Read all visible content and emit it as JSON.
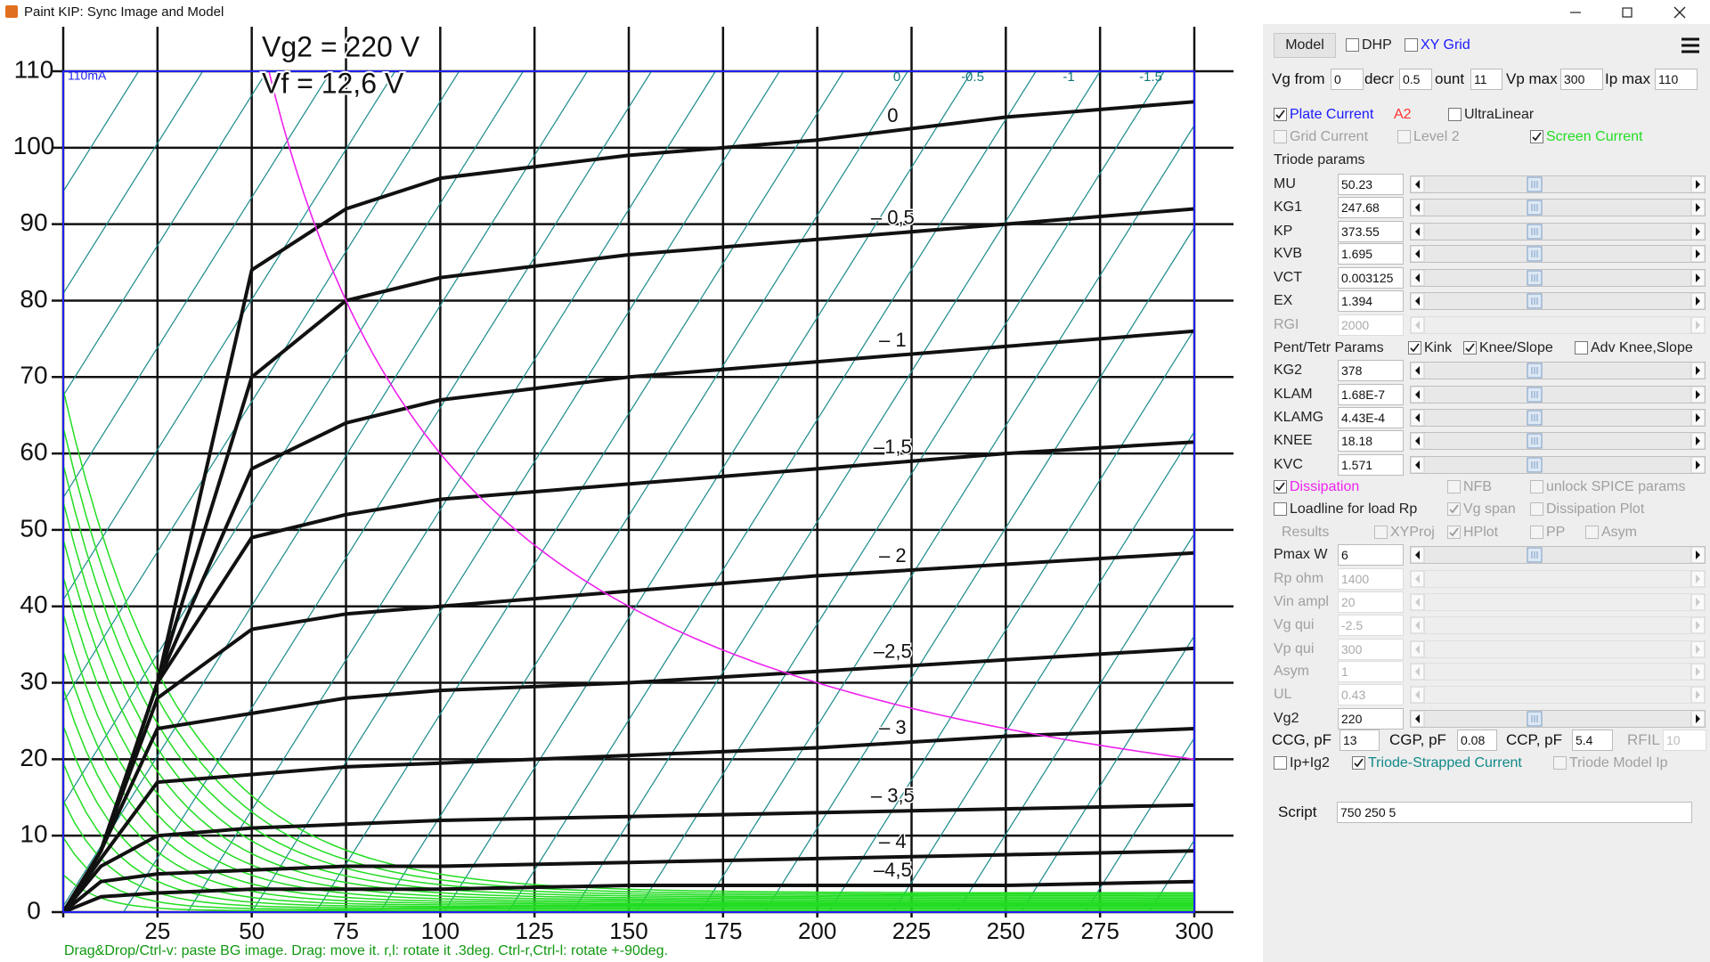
{
  "window": {
    "title": "Paint KIP: Sync Image and Model"
  },
  "plot": {
    "xlim": [
      0,
      300
    ],
    "ylim": [
      0,
      110
    ],
    "xticks": [
      25,
      50,
      75,
      100,
      125,
      150,
      175,
      200,
      225,
      250,
      275,
      300
    ],
    "yticks": [
      0,
      10,
      20,
      30,
      40,
      50,
      60,
      70,
      80,
      90,
      100,
      110
    ],
    "note": "110mA",
    "header_lines": [
      "Vg2 = 220 V",
      "Vf = 12,6 V"
    ],
    "top_labels": [
      "0",
      "-0.5",
      "-1",
      "-1.5"
    ],
    "curve_color": "#111111",
    "x": [
      0,
      10,
      25,
      50,
      75,
      100,
      150,
      200,
      250,
      300
    ],
    "curves": [
      {
        "name": "0",
        "values": [
          0,
          8,
          30,
          84,
          92,
          96,
          99,
          101,
          104,
          106
        ]
      },
      {
        "name": "– 0,5",
        "values": [
          0,
          8,
          30,
          70,
          80,
          83,
          86,
          88,
          90,
          92
        ]
      },
      {
        "name": "– 1",
        "values": [
          0,
          8,
          30,
          58,
          64,
          67,
          70,
          72,
          74,
          76
        ]
      },
      {
        "name": "–1,5",
        "values": [
          0,
          8,
          30,
          49,
          52,
          54,
          56,
          58,
          60,
          61.5
        ]
      },
      {
        "name": "– 2",
        "values": [
          0,
          8,
          28,
          37,
          39,
          40,
          42,
          44,
          45.5,
          47
        ]
      },
      {
        "name": "–2,5",
        "values": [
          0,
          8,
          24,
          26,
          28,
          29,
          30,
          31.5,
          33,
          34.5
        ]
      },
      {
        "name": "– 3",
        "values": [
          0,
          7,
          17,
          18,
          19,
          19.5,
          20.5,
          21.5,
          23,
          24
        ]
      },
      {
        "name": "– 3,5",
        "values": [
          0,
          6,
          10,
          11,
          11.5,
          12,
          12.5,
          13,
          13.5,
          14
        ]
      },
      {
        "name": "– 4",
        "values": [
          0,
          4,
          5,
          5.5,
          6,
          6,
          6.5,
          7,
          7.5,
          8
        ]
      },
      {
        "name": "–4,5",
        "values": [
          0,
          2,
          2.5,
          3,
          3,
          3,
          3.5,
          3.5,
          3.5,
          4
        ]
      }
    ]
  },
  "status": "Drag&Drop/Ctrl-v: paste BG image. Drag: move it. r,l: rotate it .3deg. Ctrl-r,Ctrl-l: rotate +-90deg.",
  "panel": {
    "rows": [
      [
        {
          "kind": "button",
          "label": "Model"
        },
        {
          "kind": "check",
          "label": "DHP",
          "checked": false
        },
        {
          "kind": "check",
          "label": "XY Grid",
          "checked": false,
          "color": "#1a1aff"
        }
      ],
      [
        {
          "kind": "field",
          "label": "Vg from",
          "value": "0"
        },
        {
          "kind": "field",
          "label": "decr",
          "value": "0.5"
        },
        {
          "kind": "field",
          "label": "ount",
          "value": "11"
        },
        {
          "kind": "field",
          "label": "Vp max",
          "value": "300"
        },
        {
          "kind": "field",
          "label": "Ip max",
          "value": "110"
        }
      ],
      [
        {
          "kind": "check",
          "label": "Plate Current",
          "checked": true,
          "color": "#1a1aff"
        },
        {
          "kind": "text",
          "label": "A2",
          "color": "#ff3333"
        },
        {
          "kind": "check",
          "label": "UltraLinear",
          "checked": false
        }
      ],
      [
        {
          "kind": "check",
          "label": "Grid Current",
          "checked": false,
          "enabled": false
        },
        {
          "kind": "check",
          "label": "Level 2",
          "checked": false,
          "enabled": false
        },
        {
          "kind": "check",
          "label": "Screen Current",
          "checked": true,
          "color": "#22dd22"
        }
      ],
      [
        {
          "kind": "text",
          "label": "Triode params"
        }
      ],
      [
        {
          "kind": "slider",
          "label": "MU",
          "value": "50.23"
        }
      ],
      [
        {
          "kind": "slider",
          "label": "KG1",
          "value": "247.68"
        }
      ],
      [
        {
          "kind": "slider",
          "label": "KP",
          "value": "373.55"
        }
      ],
      [
        {
          "kind": "slider",
          "label": "KVB",
          "value": "1.695"
        }
      ],
      [
        {
          "kind": "slider",
          "label": "VCT",
          "value": "0.003125"
        }
      ],
      [
        {
          "kind": "slider",
          "label": "EX",
          "value": "1.394"
        }
      ],
      [
        {
          "kind": "slider",
          "label": "RGI",
          "value": "2000",
          "enabled": false
        }
      ],
      [
        {
          "kind": "text",
          "label": "Pent/Tetr Params"
        },
        {
          "kind": "check",
          "label": "Kink",
          "checked": true
        },
        {
          "kind": "check",
          "label": "Knee/Slope",
          "checked": true
        },
        {
          "kind": "check",
          "label": "Adv Knee,Slope",
          "checked": false
        }
      ],
      [
        {
          "kind": "slider",
          "label": "KG2",
          "value": "378"
        }
      ],
      [
        {
          "kind": "slider",
          "label": "KLAM",
          "value": "1.68E-7"
        }
      ],
      [
        {
          "kind": "slider",
          "label": "KLAMG",
          "value": "4.43E-4"
        }
      ],
      [
        {
          "kind": "slider",
          "label": "KNEE",
          "value": "18.18"
        }
      ],
      [
        {
          "kind": "slider",
          "label": "KVC",
          "value": "1.571"
        }
      ],
      [
        {
          "kind": "check",
          "label": "Dissipation",
          "checked": true,
          "color": "#ee22ee"
        },
        {
          "kind": "check",
          "label": "NFB",
          "checked": false,
          "enabled": false
        },
        {
          "kind": "check",
          "label": "unlock SPICE params",
          "checked": false,
          "enabled": false
        }
      ],
      [
        {
          "kind": "check",
          "label": "Loadline for load Rp",
          "checked": false
        },
        {
          "kind": "check",
          "label": "Vg span",
          "checked": true,
          "enabled": false
        },
        {
          "kind": "check",
          "label": "Dissipation Plot",
          "checked": false,
          "enabled": false
        }
      ],
      [
        {
          "kind": "text",
          "label": "Results",
          "enabled": false
        },
        {
          "kind": "check",
          "label": "XYProj",
          "checked": false,
          "enabled": false
        },
        {
          "kind": "check",
          "label": "HPlot",
          "checked": true,
          "enabled": false
        },
        {
          "kind": "check",
          "label": "PP",
          "checked": false,
          "enabled": false
        },
        {
          "kind": "check",
          "label": "Asym",
          "checked": false,
          "enabled": false
        }
      ],
      [
        {
          "kind": "slider",
          "label": "Pmax W",
          "value": "6"
        }
      ],
      [
        {
          "kind": "slider",
          "label": "Rp ohm",
          "value": "1400",
          "enabled": false
        }
      ],
      [
        {
          "kind": "slider",
          "label": "Vin ampl",
          "value": "20",
          "enabled": false
        }
      ],
      [
        {
          "kind": "slider",
          "label": "Vg qui",
          "value": "-2.5",
          "enabled": false
        }
      ],
      [
        {
          "kind": "slider",
          "label": "Vp qui",
          "value": "300",
          "enabled": false
        }
      ],
      [
        {
          "kind": "slider",
          "label": "Asym",
          "value": "1",
          "enabled": false
        }
      ],
      [
        {
          "kind": "slider",
          "label": "UL",
          "value": "0.43",
          "enabled": false
        }
      ],
      [
        {
          "kind": "slider",
          "label": "Vg2",
          "value": "220"
        }
      ],
      [
        {
          "kind": "field",
          "label": "CCG, pF",
          "value": "13"
        },
        {
          "kind": "field",
          "label": "CGP, pF",
          "value": "0.08"
        },
        {
          "kind": "field",
          "label": "CCP, pF",
          "value": "5.4"
        },
        {
          "kind": "field",
          "label": "RFIL",
          "value": "10",
          "enabled": false
        }
      ],
      [
        {
          "kind": "check",
          "label": "Ip+Ig2",
          "checked": false
        },
        {
          "kind": "check",
          "label": "Triode-Strapped Current",
          "checked": true,
          "color": "#118888"
        },
        {
          "kind": "check",
          "label": "Triode Model Ip",
          "checked": false,
          "enabled": false
        }
      ],
      [
        {
          "kind": "field",
          "label": "Script",
          "value": "750 250 5"
        }
      ]
    ]
  }
}
